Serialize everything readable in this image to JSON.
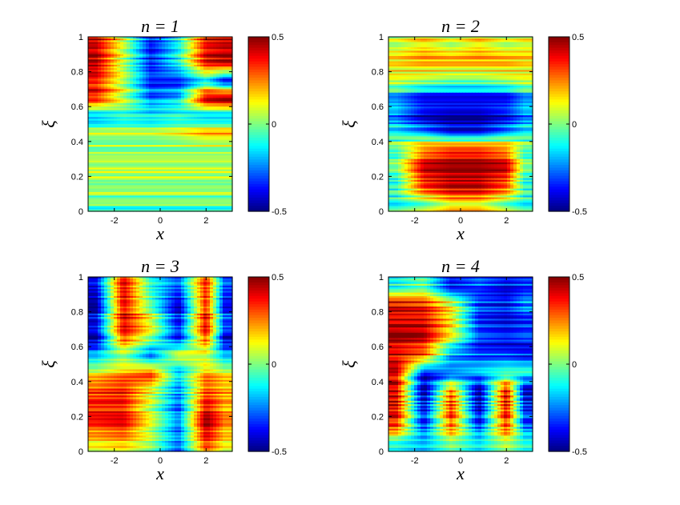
{
  "figure": {
    "background": "#ffffff",
    "colormap": "jet",
    "colormap_stops": [
      "#00007f",
      "#0000ff",
      "#007fff",
      "#00ffff",
      "#7fff7f",
      "#ffff00",
      "#ff7f00",
      "#ff0000",
      "#7f0000"
    ]
  },
  "chart_data": [
    {
      "type": "heatmap",
      "title": "n = 1",
      "xlabel": "x",
      "ylabel": "ξ",
      "xlim": [
        -3.1416,
        3.1416
      ],
      "ylim": [
        0,
        1
      ],
      "xticks": [
        -2,
        0,
        2
      ],
      "yticks": [
        0,
        0.2,
        0.4,
        0.6,
        0.8,
        1
      ],
      "xtick_labels": [
        "-2",
        "0",
        "2"
      ],
      "ytick_labels": [
        "0",
        "0.2",
        "0.4",
        "0.6",
        "0.8",
        "1"
      ],
      "clim": [
        -0.5,
        0.5
      ],
      "colorbar_ticks": [
        -0.5,
        0,
        0.5
      ],
      "colorbar_labels": [
        "-0.5",
        "0",
        "0.5"
      ],
      "colormap": "jet",
      "description_of_field": "Upper region (ξ>0.55): alternating red/blue columns in x (red near x≈-2.5 and x≈2.5, blue near x≈-0.5) with thin horizontal stripes; dark red at x≈2.5, ξ≈0.6. Lower region (ξ<0.45): near-zero values (green/yellow/cyan horizontal bands).",
      "z_samples_by_row": {
        "rows_xi": [
          0.95,
          0.85,
          0.75,
          0.65,
          0.55,
          0.45,
          0.35,
          0.25,
          0.15,
          0.05
        ],
        "cols_x": [
          -2.8,
          -1.6,
          -0.4,
          0.8,
          2.0,
          2.8
        ],
        "values": [
          [
            0.45,
            0.1,
            -0.35,
            -0.1,
            0.4,
            0.45
          ],
          [
            0.4,
            0.0,
            -0.4,
            -0.15,
            0.35,
            0.4
          ],
          [
            0.4,
            0.1,
            -0.3,
            -0.3,
            -0.1,
            -0.35
          ],
          [
            0.35,
            0.05,
            -0.3,
            -0.2,
            0.45,
            0.5
          ],
          [
            -0.2,
            -0.1,
            -0.15,
            -0.1,
            -0.2,
            -0.2
          ],
          [
            0.05,
            0.05,
            0.05,
            0.1,
            0.2,
            0.2
          ],
          [
            0.05,
            0.05,
            0.05,
            0.05,
            0.05,
            0.05
          ],
          [
            0.1,
            0.1,
            0.1,
            0.1,
            0.1,
            0.1
          ],
          [
            0.05,
            0.05,
            0.05,
            0.05,
            0.05,
            0.05
          ],
          [
            -0.05,
            -0.05,
            -0.05,
            -0.05,
            -0.05,
            -0.05
          ]
        ]
      }
    },
    {
      "type": "heatmap",
      "title": "n = 2",
      "xlabel": "x",
      "ylabel": "ξ",
      "xlim": [
        -3.1416,
        3.1416
      ],
      "ylim": [
        0,
        1
      ],
      "xticks": [
        -2,
        0,
        2
      ],
      "yticks": [
        0,
        0.2,
        0.4,
        0.6,
        0.8,
        1
      ],
      "xtick_labels": [
        "-2",
        "0",
        "2"
      ],
      "ytick_labels": [
        "0",
        "0.2",
        "0.4",
        "0.6",
        "0.8",
        "1"
      ],
      "clim": [
        -0.5,
        0.5
      ],
      "colorbar_ticks": [
        -0.5,
        0,
        0.5
      ],
      "colorbar_labels": [
        "-0.5",
        "0",
        "0.5"
      ],
      "colormap": "jet",
      "description_of_field": "Top (ξ>0.7): mostly yellow/green/orange horizontal stripes. Middle (0.45–0.65): deep blue band, darkest near x≈0. Lower (0.1–0.4): red/dark-red blob centered at x≈0, with cyan/green at the x edges.",
      "z_samples_by_row": {
        "rows_xi": [
          0.95,
          0.85,
          0.75,
          0.65,
          0.55,
          0.45,
          0.35,
          0.25,
          0.15,
          0.05
        ],
        "cols_x": [
          -2.8,
          -1.6,
          -0.4,
          0.8,
          2.0,
          2.8
        ],
        "values": [
          [
            0.05,
            0.15,
            0.05,
            0.15,
            0.05,
            0.1
          ],
          [
            0.15,
            0.2,
            0.2,
            0.2,
            0.2,
            0.15
          ],
          [
            0.1,
            0.05,
            0.0,
            0.0,
            0.05,
            0.1
          ],
          [
            -0.2,
            -0.35,
            -0.35,
            -0.35,
            -0.35,
            -0.2
          ],
          [
            -0.25,
            -0.45,
            -0.5,
            -0.5,
            -0.4,
            -0.25
          ],
          [
            -0.1,
            -0.2,
            -0.35,
            -0.35,
            -0.2,
            -0.1
          ],
          [
            0.0,
            0.3,
            0.4,
            0.4,
            0.3,
            0.0
          ],
          [
            -0.05,
            0.4,
            0.45,
            0.45,
            0.4,
            -0.05
          ],
          [
            -0.1,
            0.35,
            0.45,
            0.45,
            0.3,
            -0.1
          ],
          [
            -0.1,
            0.0,
            0.15,
            0.15,
            0.0,
            -0.1
          ]
        ]
      }
    },
    {
      "type": "heatmap",
      "title": "n = 3",
      "xlabel": "x",
      "ylabel": "ξ",
      "xlim": [
        -3.1416,
        3.1416
      ],
      "ylim": [
        0,
        1
      ],
      "xticks": [
        -2,
        0,
        2
      ],
      "yticks": [
        0,
        0.2,
        0.4,
        0.6,
        0.8,
        1
      ],
      "xtick_labels": [
        "-2",
        "0",
        "2"
      ],
      "ytick_labels": [
        "0",
        "0.2",
        "0.4",
        "0.6",
        "0.8",
        "1"
      ],
      "clim": [
        -0.5,
        0.5
      ],
      "colorbar_ticks": [
        -0.5,
        0,
        0.5
      ],
      "colorbar_labels": [
        "-0.5",
        "0",
        "0.5"
      ],
      "colormap": "jet",
      "description_of_field": "Upper (ξ>0.55): four alternating columns (blue at x≈-2.8, red at x≈-1.5, blue at x≈0, red at x≈1.3, blue at x≈2.8) with thin stripes. Lower (ξ<0.45): red for x<-0.5, blue near x≈0, red near x≈1.5, blue near x≈3.",
      "z_samples_by_row": {
        "rows_xi": [
          0.95,
          0.85,
          0.75,
          0.65,
          0.55,
          0.45,
          0.35,
          0.25,
          0.15,
          0.05
        ],
        "cols_x": [
          -2.8,
          -1.6,
          -0.4,
          0.8,
          2.0,
          2.8
        ],
        "values": [
          [
            -0.4,
            0.4,
            -0.1,
            -0.3,
            0.35,
            -0.3
          ],
          [
            -0.45,
            0.45,
            0.0,
            -0.4,
            0.4,
            -0.35
          ],
          [
            -0.4,
            0.4,
            0.1,
            -0.4,
            0.4,
            -0.3
          ],
          [
            -0.45,
            0.35,
            0.05,
            -0.35,
            0.35,
            -0.4
          ],
          [
            -0.2,
            0.0,
            -0.3,
            0.1,
            0.05,
            -0.2
          ],
          [
            0.1,
            0.2,
            0.3,
            -0.2,
            0.2,
            0.1
          ],
          [
            0.3,
            0.35,
            0.1,
            -0.25,
            0.3,
            0.2
          ],
          [
            0.35,
            0.35,
            0.05,
            -0.3,
            0.4,
            0.2
          ],
          [
            0.3,
            0.35,
            0.05,
            -0.3,
            0.45,
            0.2
          ],
          [
            0.1,
            0.15,
            0.0,
            -0.3,
            0.3,
            0.1
          ]
        ]
      }
    },
    {
      "type": "heatmap",
      "title": "n = 4",
      "xlabel": "x",
      "ylabel": "ξ",
      "xlim": [
        -3.1416,
        3.1416
      ],
      "ylim": [
        0,
        1
      ],
      "xticks": [
        -2,
        0,
        2
      ],
      "yticks": [
        0,
        0.2,
        0.4,
        0.6,
        0.8,
        1
      ],
      "xtick_labels": [
        "-2",
        "0",
        "2"
      ],
      "ytick_labels": [
        "0",
        "0.2",
        "0.4",
        "0.6",
        "0.8",
        "1"
      ],
      "clim": [
        -0.5,
        0.5
      ],
      "colorbar_ticks": [
        -0.5,
        0,
        0.5
      ],
      "colorbar_labels": [
        "-0.5",
        "0",
        "0.5"
      ],
      "colormap": "jet",
      "description_of_field": "Upper (ξ>0.5): red for x<-1, fading to blue for x>0.5. Lower (ξ<0.45): alternating vertical columns (red x≈-2.5, blue x≈-1.2, red x≈-0.2, blue x≈0.7, red x≈1.6, blue x≈2.6).",
      "z_samples_by_row": {
        "rows_xi": [
          0.95,
          0.85,
          0.75,
          0.65,
          0.55,
          0.45,
          0.35,
          0.25,
          0.15,
          0.05
        ],
        "cols_x": [
          -2.8,
          -1.6,
          -0.4,
          0.8,
          2.0,
          2.8
        ],
        "values": [
          [
            -0.1,
            0.0,
            -0.35,
            -0.25,
            -0.35,
            -0.3
          ],
          [
            0.4,
            0.35,
            0.1,
            -0.3,
            -0.35,
            -0.2
          ],
          [
            0.45,
            0.45,
            0.2,
            -0.3,
            -0.35,
            -0.3
          ],
          [
            0.45,
            0.4,
            0.05,
            -0.35,
            -0.4,
            -0.35
          ],
          [
            0.4,
            0.3,
            -0.2,
            -0.3,
            -0.3,
            -0.35
          ],
          [
            0.4,
            -0.4,
            -0.3,
            -0.2,
            -0.1,
            -0.1
          ],
          [
            0.45,
            -0.45,
            0.3,
            -0.45,
            0.45,
            -0.4
          ],
          [
            0.4,
            -0.4,
            0.35,
            -0.45,
            0.4,
            -0.35
          ],
          [
            0.35,
            -0.35,
            0.3,
            -0.35,
            0.35,
            -0.3
          ],
          [
            -0.05,
            -0.15,
            0.05,
            -0.1,
            0.1,
            -0.05
          ]
        ]
      }
    }
  ]
}
